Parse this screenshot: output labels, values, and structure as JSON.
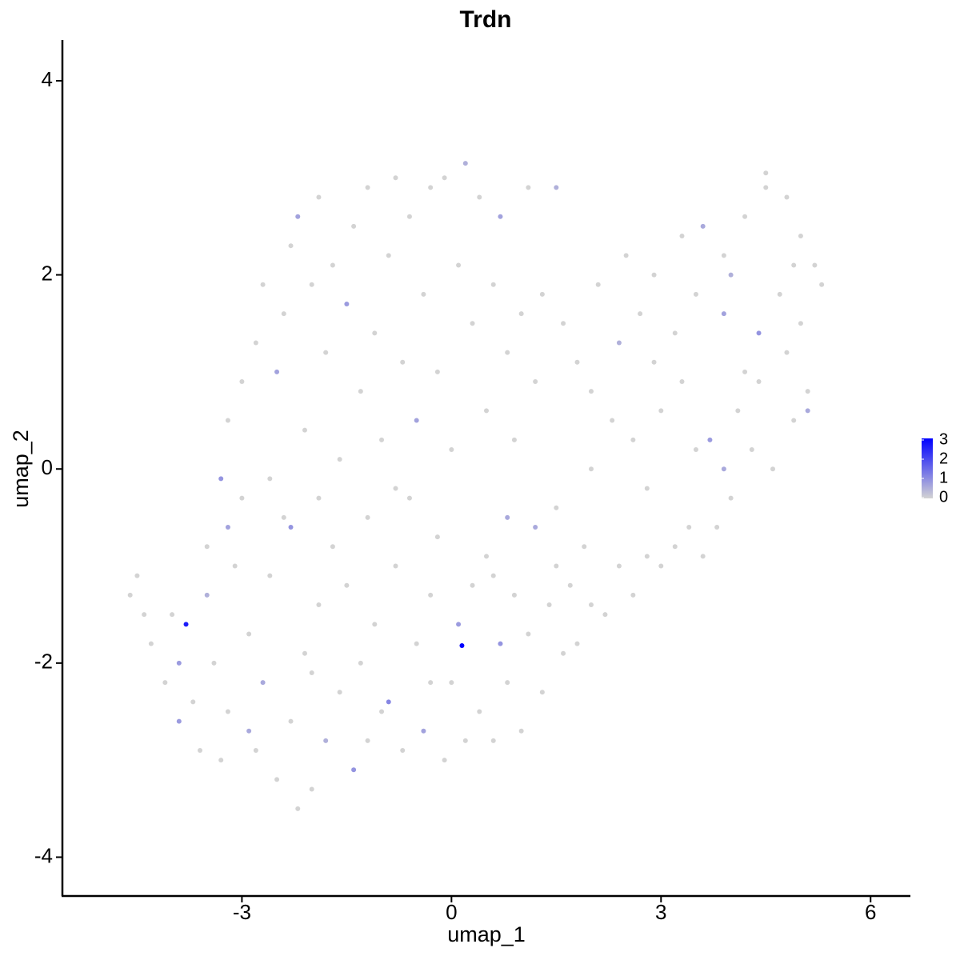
{
  "chart_data": {
    "type": "scatter",
    "title": "Trdn",
    "x_label": "umap_1",
    "y_label": "umap_2",
    "xlim": [
      -5.57,
      6.57
    ],
    "ylim": [
      -4.4,
      4.42
    ],
    "xticks": [
      -3,
      0,
      3,
      6
    ],
    "yticks": [
      -4,
      -2,
      0,
      2,
      4
    ],
    "color_low": "#d3d3d3",
    "color_high": "#0000ff",
    "colorlim": [
      0,
      3
    ],
    "colorticks": [
      0,
      1,
      2,
      3
    ],
    "x": [
      -4.6,
      -4.5,
      -4.4,
      -4.3,
      -4.1,
      -4.0,
      -3.9,
      -3.8,
      -3.7,
      -3.6,
      -3.5,
      -3.4,
      -3.3,
      -3.2,
      -3.1,
      -3.0,
      -3.2,
      -3.3,
      -2.9,
      -2.8,
      -2.7,
      -2.6,
      -2.5,
      -2.4,
      -2.3,
      -2.2,
      -2.1,
      -2.0,
      -2.3,
      -1.9,
      -1.8,
      -1.7,
      -1.6,
      -1.5,
      -1.4,
      -1.3,
      -1.2,
      -1.1,
      -1.0,
      -0.9,
      -0.8,
      -0.7,
      -0.6,
      -0.5,
      -0.4,
      -0.3,
      -0.2,
      -0.1,
      0.0,
      0.15,
      0.1,
      0.2,
      0.3,
      0.4,
      0.5,
      0.6,
      0.7,
      0.8,
      0.9,
      1.0,
      1.1,
      1.2,
      1.3,
      1.4,
      1.5,
      1.6,
      1.7,
      1.8,
      2.0,
      2.2,
      2.4,
      2.6,
      2.8,
      3.0,
      3.2,
      3.4,
      3.6,
      3.8,
      4.0,
      4.3,
      4.6,
      4.9,
      5.1,
      3.5,
      3.7,
      3.9,
      4.1,
      4.4,
      2.6,
      2.3,
      2.0,
      1.8,
      1.6,
      2.1,
      2.5,
      2.9,
      3.3,
      3.6,
      3.9,
      4.2,
      4.5,
      4.5,
      4.8,
      5.0,
      5.2,
      5.3,
      5.0,
      4.7,
      4.4,
      4.2,
      3.9,
      3.5,
      3.2,
      2.9,
      2.7,
      2.4,
      3.0,
      3.3,
      4.8,
      5.1,
      4.9,
      4.0,
      -3.2,
      -3.0,
      -2.8,
      -2.7,
      -2.5,
      -2.4,
      -2.3,
      -2.2,
      -2.1,
      -2.0,
      -1.9,
      -1.8,
      -1.7,
      -1.6,
      -1.5,
      -1.4,
      -1.3,
      -1.2,
      -1.1,
      -1.0,
      -0.9,
      -0.8,
      -0.7,
      -0.6,
      -0.5,
      -0.4,
      -0.3,
      -0.2,
      -0.1,
      0.0,
      0.1,
      0.2,
      0.3,
      0.4,
      0.5,
      0.6,
      0.7,
      0.8,
      0.9,
      1.0,
      1.1,
      1.2,
      1.3,
      1.5,
      -0.8,
      -1.9,
      -2.6,
      0.8,
      1.5,
      2.0,
      2.8,
      -3.5,
      -3.9,
      -2.9,
      -2.0,
      -1.2,
      -0.3,
      0.6,
      1.9
    ],
    "values": [
      -1.3,
      -1.1,
      -1.5,
      -1.8,
      -2.2,
      -1.5,
      -2.6,
      -1.6,
      -2.4,
      -2.9,
      -1.3,
      -2.0,
      -3.0,
      -2.5,
      -1.0,
      -0.3,
      -0.6,
      -0.1,
      -1.7,
      -2.9,
      -2.2,
      -1.1,
      -3.2,
      -0.5,
      -2.6,
      -3.5,
      -1.9,
      -3.3,
      -0.6,
      -1.4,
      -2.8,
      -0.8,
      -2.3,
      -1.2,
      -3.1,
      -2.0,
      -0.5,
      -1.6,
      -2.5,
      -2.4,
      -1.0,
      -2.9,
      -0.3,
      -1.8,
      -2.7,
      -1.3,
      -0.7,
      -3.0,
      -2.2,
      -1.82,
      -1.6,
      -2.8,
      -1.2,
      -2.5,
      -0.9,
      -2.8,
      -1.8,
      -2.2,
      -1.3,
      -2.7,
      -1.7,
      -0.6,
      -2.3,
      -1.4,
      -1.0,
      -1.9,
      -1.2,
      -1.8,
      -1.4,
      -1.5,
      -1.0,
      -1.3,
      -0.9,
      -1.0,
      -0.8,
      -0.6,
      -0.9,
      -0.6,
      -0.3,
      0.2,
      0.0,
      0.5,
      0.8,
      0.2,
      0.3,
      0.0,
      0.6,
      0.9,
      0.3,
      0.5,
      0.8,
      1.1,
      1.5,
      1.9,
      2.2,
      2.0,
      2.4,
      2.5,
      2.2,
      2.6,
      2.9,
      3.05,
      2.8,
      2.4,
      2.1,
      1.9,
      1.5,
      1.8,
      1.4,
      1.0,
      1.6,
      1.8,
      1.4,
      1.1,
      1.6,
      1.3,
      0.6,
      0.9,
      1.2,
      0.6,
      2.1,
      2.0,
      0.5,
      0.9,
      1.3,
      1.9,
      1.0,
      1.6,
      2.3,
      2.6,
      0.4,
      1.9,
      2.8,
      1.2,
      2.1,
      0.1,
      1.7,
      2.5,
      0.8,
      2.9,
      1.4,
      0.3,
      2.2,
      3.0,
      1.1,
      2.6,
      0.5,
      1.8,
      2.9,
      1.0,
      3.0,
      0.2,
      2.1,
      3.15,
      1.5,
      2.8,
      0.6,
      1.9,
      2.6,
      1.2,
      0.3,
      1.6,
      2.9,
      0.9,
      1.8,
      2.9,
      -0.2,
      -0.3,
      -0.1,
      -0.5,
      -0.4,
      0.0,
      -0.2,
      -0.8,
      -2.0,
      -2.7,
      -2.1,
      -2.8,
      -2.2,
      -1.1,
      -0.8
    ],
    "expression": [
      0,
      0,
      0,
      0,
      0,
      0,
      0.8,
      2.6,
      0,
      0,
      0.5,
      0,
      0,
      0,
      0,
      0,
      0.7,
      0.9,
      0,
      0,
      0.6,
      0,
      0,
      0,
      0,
      0,
      0,
      0,
      0.9,
      0,
      0.5,
      0,
      0,
      0,
      0.9,
      0,
      0,
      0,
      0,
      1.1,
      0,
      0,
      0,
      0,
      0.7,
      0,
      0,
      0,
      0,
      3,
      0.8,
      0,
      0,
      0,
      0,
      0,
      0.9,
      0,
      0,
      0,
      0,
      0.6,
      0,
      0,
      0,
      0,
      0,
      0,
      0,
      0,
      0,
      0,
      0,
      0,
      0,
      0,
      0,
      0,
      0,
      0,
      0,
      0,
      0,
      0,
      0.8,
      0.6,
      0,
      0,
      0,
      0,
      0,
      0,
      0,
      0,
      0,
      0,
      0,
      0.6,
      0,
      0,
      0,
      0,
      0,
      0,
      0,
      0,
      0,
      0,
      0.9,
      0,
      0.7,
      0,
      0,
      0,
      0,
      0.5,
      0,
      0,
      0,
      0.6,
      0,
      0.5,
      0,
      0,
      0,
      0,
      0.7,
      0,
      0,
      0.7,
      0,
      0,
      0,
      0,
      0,
      0,
      0.8,
      0,
      0,
      0,
      0,
      0,
      0,
      0,
      0,
      0,
      0.7,
      0,
      0,
      0,
      0,
      0,
      0,
      0.5,
      0,
      0,
      0,
      0,
      0.7,
      0,
      0,
      0,
      0,
      0,
      0,
      0.5,
      0,
      0,
      0,
      0.6,
      0,
      0,
      0,
      0,
      0.8,
      0.6,
      0,
      0,
      0,
      0,
      0
    ]
  }
}
